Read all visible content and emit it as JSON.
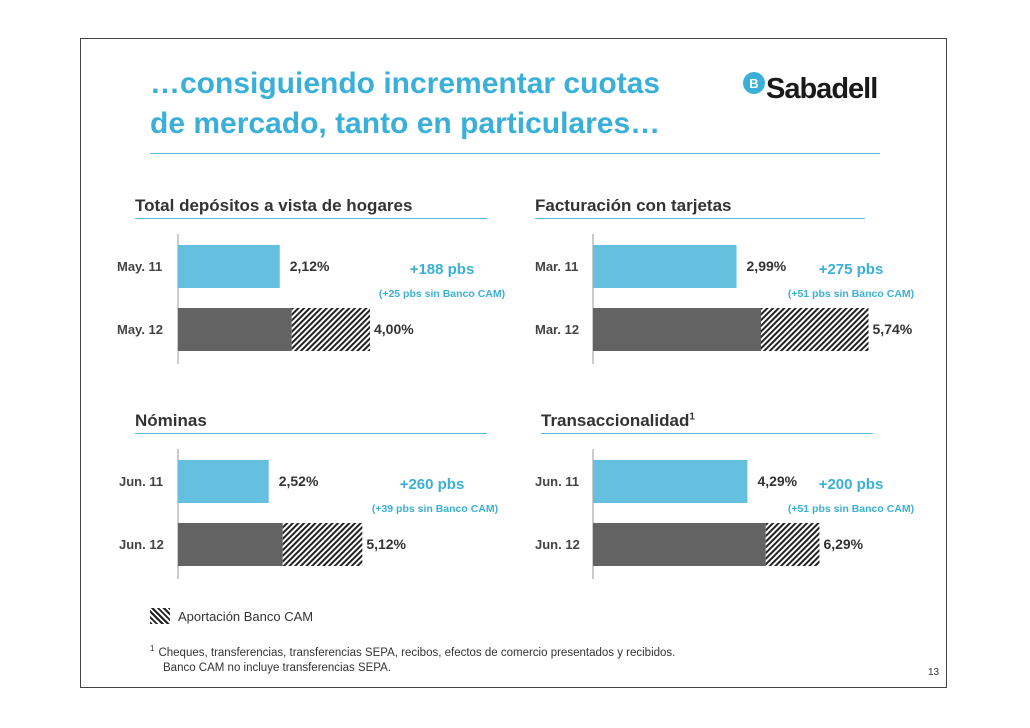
{
  "header": {
    "title_line1": "…consiguiendo incrementar cuotas",
    "title_line2": "de mercado, tanto en particulares…",
    "logo_badge": "B",
    "logo_text": "Sabadell"
  },
  "colors": {
    "base": "#65bfde",
    "current": "#636363",
    "accent": "#3ab0d8",
    "hatch": "#222222"
  },
  "chart_data": [
    {
      "type": "bar",
      "title": "Total depósitos a vista de hogares",
      "categories": [
        "May. 11",
        "May. 12"
      ],
      "values": [
        2.12,
        4.0
      ],
      "value_labels": [
        "2,12%",
        "4,00%"
      ],
      "stacked_current": {
        "organic": 2.37,
        "banco_cam": 1.63
      },
      "delta": "+188 pbs",
      "delta_note": "(+25 pbs sin Banco CAM)",
      "unit": "%"
    },
    {
      "type": "bar",
      "title": "Facturación con tarjetas",
      "categories": [
        "Mar. 11",
        "Mar. 12"
      ],
      "values": [
        2.99,
        5.74
      ],
      "value_labels": [
        "2,99%",
        "5,74%"
      ],
      "stacked_current": {
        "organic": 3.5,
        "banco_cam": 2.24
      },
      "delta": "+275 pbs",
      "delta_note": "(+51 pbs sin Banco CAM)",
      "unit": "%"
    },
    {
      "type": "bar",
      "title": "Nóminas",
      "categories": [
        "Jun. 11",
        "Jun. 12"
      ],
      "values": [
        2.52,
        5.12
      ],
      "value_labels": [
        "2,52%",
        "5,12%"
      ],
      "stacked_current": {
        "organic": 2.91,
        "banco_cam": 2.21
      },
      "delta": "+260 pbs",
      "delta_note": "(+39 pbs sin Banco CAM)",
      "unit": "%"
    },
    {
      "type": "bar",
      "title": "Transaccionalidad",
      "title_sup": "1",
      "categories": [
        "Jun. 11",
        "Jun. 12"
      ],
      "values": [
        4.29,
        6.29
      ],
      "value_labels": [
        "4,29%",
        "6,29%"
      ],
      "stacked_current": {
        "organic": 4.8,
        "banco_cam": 1.49
      },
      "delta": "+200 pbs",
      "delta_note": "(+51 pbs sin Banco CAM)",
      "unit": "%"
    }
  ],
  "legend": {
    "label": "Aportación Banco CAM"
  },
  "footnote": {
    "marker": "1",
    "line1": "Cheques, transferencias, transferencias SEPA, recibos, efectos de comercio presentados y recibidos.",
    "line2": "Banco CAM no incluye transferencias SEPA."
  },
  "page_number": "13"
}
